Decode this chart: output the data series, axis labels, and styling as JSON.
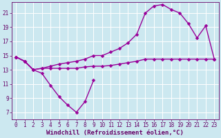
{
  "xlabel": "Windchill (Refroidissement éolien,°C)",
  "background_color": "#cce8f0",
  "grid_color": "#ffffff",
  "line_color": "#990099",
  "xlim": [
    -0.5,
    23.5
  ],
  "ylim": [
    6,
    22.5
  ],
  "xticks": [
    0,
    1,
    2,
    3,
    4,
    5,
    6,
    7,
    8,
    9,
    10,
    11,
    12,
    13,
    14,
    15,
    16,
    17,
    18,
    19,
    20,
    21,
    22,
    23
  ],
  "yticks": [
    7,
    9,
    11,
    13,
    15,
    17,
    19,
    21
  ],
  "series": [
    {
      "x": [
        0,
        1,
        2,
        3,
        4,
        5,
        6,
        7,
        8,
        9
      ],
      "y": [
        14.8,
        14.2,
        13.0,
        12.5,
        10.8,
        9.2,
        8.0,
        7.0,
        8.5,
        11.5
      ]
    },
    {
      "x": [
        0,
        1,
        2,
        3,
        4,
        5,
        6,
        7,
        8,
        9,
        10,
        11,
        12,
        13,
        14,
        15,
        16,
        17,
        18,
        19,
        20,
        21,
        22,
        23
      ],
      "y": [
        14.8,
        14.2,
        13.0,
        13.2,
        13.2,
        13.2,
        13.2,
        13.2,
        13.4,
        13.5,
        13.5,
        13.6,
        13.8,
        14.0,
        14.2,
        14.5,
        14.5,
        14.5,
        14.5,
        14.5,
        14.5,
        14.5,
        14.5,
        14.5
      ]
    },
    {
      "x": [
        0,
        1,
        2,
        3,
        4,
        5,
        6,
        7,
        8,
        9,
        10,
        11,
        12,
        13,
        14,
        15,
        16,
        17,
        18,
        19,
        20,
        21,
        22,
        23
      ],
      "y": [
        14.8,
        14.2,
        13.0,
        13.2,
        13.5,
        13.8,
        14.0,
        14.2,
        14.5,
        15.0,
        15.0,
        15.5,
        16.0,
        16.8,
        18.0,
        21.0,
        22.0,
        22.2,
        21.5,
        21.0,
        19.5,
        17.5,
        19.2,
        14.5
      ]
    }
  ],
  "marker": "D",
  "markersize": 2.5,
  "linewidth": 1.0,
  "font_color": "#660066",
  "font_size": 6.5,
  "tick_font_size": 5.5
}
